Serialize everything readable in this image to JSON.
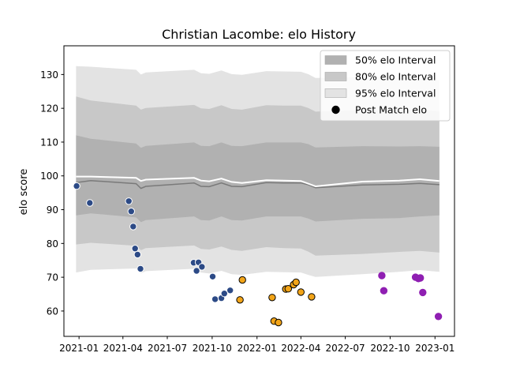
{
  "chart_data": {
    "type": "scatter",
    "title": "Christian Lacombe: elo History",
    "xlabel": "",
    "ylabel": "elo score",
    "xlim": [
      "2020-12-01",
      "2023-02-10"
    ],
    "ylim": [
      52.5,
      138.5
    ],
    "xticks": [
      "2021-01",
      "2021-04",
      "2021-07",
      "2021-10",
      "2022-01",
      "2022-04",
      "2022-07",
      "2022-10",
      "2023-01"
    ],
    "yticks": [
      60,
      70,
      80,
      90,
      100,
      110,
      120,
      130
    ],
    "grid": false,
    "legend_position": "top-right",
    "legend": [
      {
        "label": "50% elo Interval",
        "kind": "band",
        "color": "#b1b1b1"
      },
      {
        "label": "80% elo Interval",
        "kind": "band",
        "color": "#c8c8c8"
      },
      {
        "label": "95% elo Interval",
        "kind": "band",
        "color": "#e3e3e3"
      },
      {
        "label": "Post Match elo",
        "kind": "marker",
        "color": "#000000"
      }
    ],
    "bands": {
      "x": [
        "2020-12-26",
        "2021-01-25",
        "2021-04-28",
        "2021-05-08",
        "2021-05-18",
        "2021-08-25",
        "2021-09-08",
        "2021-09-25",
        "2021-10-20",
        "2021-11-10",
        "2021-12-01",
        "2022-01-20",
        "2022-02-25",
        "2022-04-01",
        "2022-04-16",
        "2022-05-01",
        "2022-08-05",
        "2022-10-20",
        "2022-12-01",
        "2023-01-10"
      ],
      "center": [
        98,
        98.6,
        97.7,
        96.3,
        96.9,
        97.9,
        96.9,
        96.8,
        97.9,
        96.9,
        96.8,
        98,
        97.9,
        97.9,
        97.4,
        96.5,
        97.3,
        97.5,
        97.8,
        97.4
      ],
      "p50": {
        "low": [
          88.3,
          88.9,
          87.7,
          86.3,
          86.9,
          88.0,
          86.9,
          86.8,
          88.0,
          86.9,
          86.8,
          88.0,
          88.0,
          88.0,
          87.4,
          86.5,
          87.3,
          87.5,
          88.0,
          88.3
        ],
        "high": [
          112,
          111,
          109.6,
          108.3,
          108.9,
          109.9,
          108.9,
          108.8,
          109.9,
          108.9,
          108.8,
          109.9,
          109.9,
          109.9,
          109.4,
          108.4,
          108.8,
          108.7,
          108.8,
          108.6
        ]
      },
      "p80": {
        "low": [
          79.7,
          80.2,
          79.3,
          78.0,
          78.6,
          79.4,
          78.4,
          78.2,
          79.1,
          78.1,
          77.8,
          78.9,
          78.6,
          78.5,
          77.6,
          76.4,
          76.9,
          77.5,
          77.8,
          77.3
        ],
        "high": [
          123.5,
          122.3,
          120.8,
          119.6,
          120.1,
          121,
          120,
          119.8,
          120.9,
          119.8,
          119.6,
          120.9,
          120.8,
          120.8,
          120.1,
          119,
          119.5,
          119.4,
          119.5,
          119.2
        ]
      },
      "p95": {
        "low": [
          71.4,
          72.2,
          72.6,
          71.2,
          71.8,
          72.5,
          71.4,
          71.1,
          71.9,
          70.9,
          70.7,
          71.6,
          71.5,
          71.4,
          70.7,
          70.1,
          70.9,
          71.6,
          72.1,
          71.6
        ],
        "high": [
          132.5,
          132.3,
          131.4,
          130,
          130.6,
          131.4,
          130.4,
          130.2,
          131.2,
          130.1,
          129.9,
          131,
          130.9,
          130.8,
          130.1,
          129,
          129.2,
          129,
          128.8,
          128.3
        ]
      },
      "expected": [
        99.8,
        99.8,
        99.4,
        98.5,
        98.9,
        99.4,
        98.6,
        98.4,
        99.2,
        98.2,
        97.9,
        98.7,
        98.6,
        98.5,
        97.7,
        96.9,
        98.3,
        98.6,
        99.0,
        98.5
      ]
    },
    "series": [
      {
        "color": "#2c4a86",
        "edge": "#ffffff",
        "points": [
          {
            "x": "2020-12-27",
            "y": 97
          },
          {
            "x": "2021-01-23",
            "y": 92
          },
          {
            "x": "2021-04-13",
            "y": 92.5
          },
          {
            "x": "2021-04-18",
            "y": 89.5
          },
          {
            "x": "2021-04-22",
            "y": 85
          },
          {
            "x": "2021-04-26",
            "y": 78.5
          },
          {
            "x": "2021-05-01",
            "y": 76.7
          },
          {
            "x": "2021-05-07",
            "y": 72.5
          },
          {
            "x": "2021-08-24",
            "y": 74.3
          },
          {
            "x": "2021-08-30",
            "y": 71.9
          },
          {
            "x": "2021-09-03",
            "y": 74.4
          },
          {
            "x": "2021-09-10",
            "y": 73.1
          },
          {
            "x": "2021-10-02",
            "y": 70.2
          },
          {
            "x": "2021-10-07",
            "y": 63.5
          },
          {
            "x": "2021-10-20",
            "y": 63.8
          },
          {
            "x": "2021-10-26",
            "y": 65.2
          },
          {
            "x": "2021-11-07",
            "y": 66.1
          }
        ]
      },
      {
        "color": "#f2a418",
        "edge": "#000000",
        "points": [
          {
            "x": "2021-11-27",
            "y": 63.3
          },
          {
            "x": "2021-12-02",
            "y": 69.2
          },
          {
            "x": "2022-02-01",
            "y": 64
          },
          {
            "x": "2022-02-05",
            "y": 57
          },
          {
            "x": "2022-02-14",
            "y": 56.6
          },
          {
            "x": "2022-03-01",
            "y": 66.5
          },
          {
            "x": "2022-03-06",
            "y": 66.6
          },
          {
            "x": "2022-03-17",
            "y": 67.8
          },
          {
            "x": "2022-03-22",
            "y": 68.5
          },
          {
            "x": "2022-04-01",
            "y": 65.6
          },
          {
            "x": "2022-04-23",
            "y": 64.2
          }
        ]
      },
      {
        "color": "#8f1fb2",
        "edge": "#8f1fb2",
        "points": [
          {
            "x": "2022-09-14",
            "y": 70.5
          },
          {
            "x": "2022-09-18",
            "y": 66
          },
          {
            "x": "2022-11-22",
            "y": 70
          },
          {
            "x": "2022-11-28",
            "y": 69.6
          },
          {
            "x": "2022-12-02",
            "y": 69.8
          },
          {
            "x": "2022-12-07",
            "y": 65.5
          },
          {
            "x": "2023-01-08",
            "y": 58.4
          }
        ]
      }
    ]
  }
}
